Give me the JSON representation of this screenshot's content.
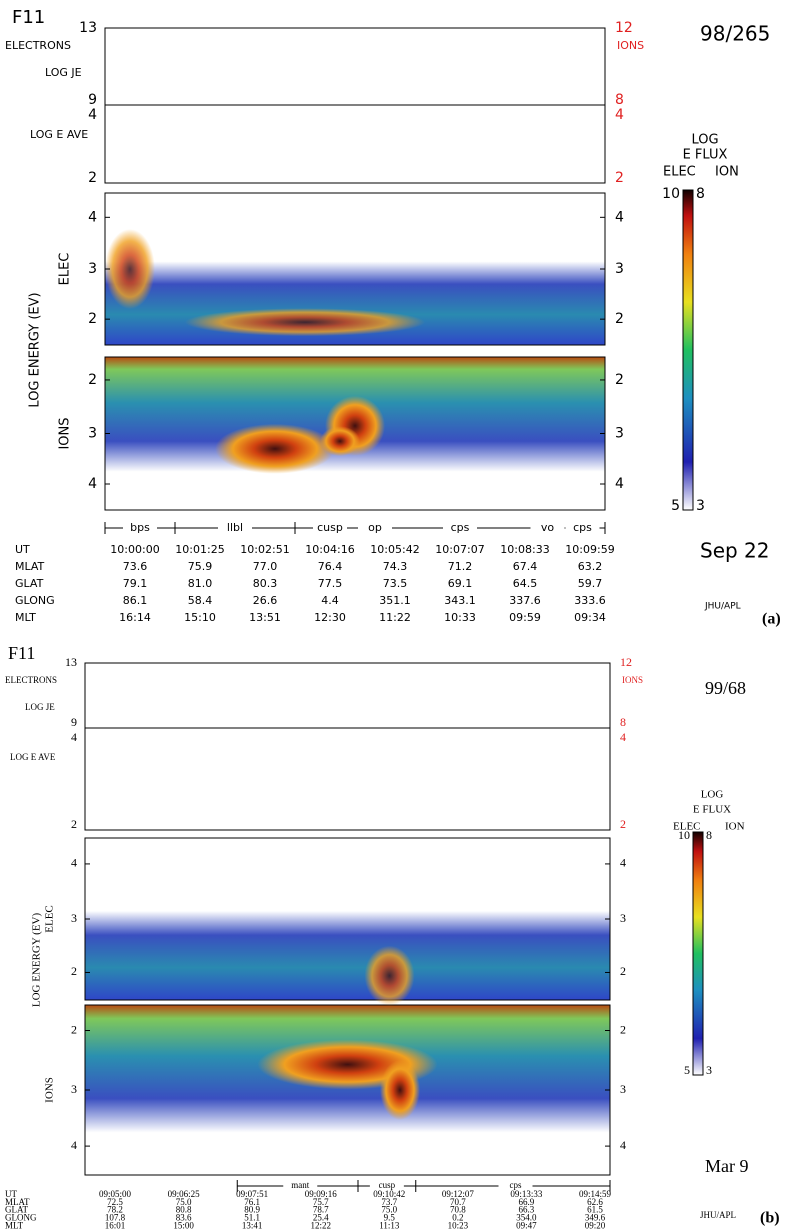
{
  "panels": [
    {
      "satellite": "F11",
      "date_code": "98/265",
      "date": "Sep 22",
      "credit": "JHU/APL",
      "label": "(a)",
      "top_plot": {
        "left_labels": [
          "ELECTRONS",
          "LOG JE"
        ],
        "left_ticks": [
          "13",
          "9"
        ],
        "right_label": "IONS",
        "right_ticks": [
          "12",
          "8"
        ]
      },
      "ave_plot": {
        "label": "LOG E AVE",
        "left_ticks": [
          "4",
          "2"
        ],
        "right_ticks": [
          "4",
          "2"
        ]
      },
      "y_axis_label": "LOG ENERGY (EV)",
      "elec_plot": {
        "label": "ELEC",
        "ticks": [
          "4",
          "3",
          "2"
        ]
      },
      "ion_plot": {
        "label": "IONS",
        "ticks": [
          "2",
          "3",
          "4"
        ]
      },
      "colorbar": {
        "title": [
          "LOG",
          "E FLUX"
        ],
        "elec_label": "ELEC",
        "ion_label": "ION",
        "max_elec": "10",
        "max_ion": "8",
        "min_elec": "5",
        "min_ion": "3"
      },
      "regions": [
        "bps",
        "llbl",
        "cusp",
        "op",
        "cps",
        "vo",
        "cps"
      ],
      "table": {
        "row_labels": [
          "UT",
          "MLAT",
          "GLAT",
          "GLONG",
          "MLT"
        ],
        "rows": [
          [
            "10:00:00",
            "10:01:25",
            "10:02:51",
            "10:04:16",
            "10:05:42",
            "10:07:07",
            "10:08:33",
            "10:09:59"
          ],
          [
            "73.6",
            "75.9",
            "77.0",
            "76.4",
            "74.3",
            "71.2",
            "67.4",
            "63.2"
          ],
          [
            "79.1",
            "81.0",
            "80.3",
            "77.5",
            "73.5",
            "69.1",
            "64.5",
            "59.7"
          ],
          [
            "86.1",
            "58.4",
            "26.6",
            "4.4",
            "351.1",
            "343.1",
            "337.6",
            "333.6"
          ],
          [
            "16:14",
            "15:10",
            "13:51",
            "12:30",
            "11:22",
            "10:33",
            "09:59",
            "09:34"
          ]
        ]
      }
    },
    {
      "satellite": "F11",
      "date_code": "99/68",
      "date": "Mar 9",
      "credit": "JHU/APL",
      "label": "(b)",
      "top_plot": {
        "left_labels": [
          "ELECTRONS",
          "LOG JE"
        ],
        "left_ticks": [
          "13",
          "9"
        ],
        "right_label": "IONS",
        "right_ticks": [
          "12",
          "8"
        ]
      },
      "ave_plot": {
        "label": "LOG E AVE",
        "left_ticks": [
          "4",
          "2"
        ],
        "right_ticks": [
          "4",
          "2"
        ]
      },
      "y_axis_label": "LOG ENERGY (EV)",
      "elec_plot": {
        "label": "ELEC",
        "ticks": [
          "4",
          "3",
          "2"
        ]
      },
      "ion_plot": {
        "label": "IONS",
        "ticks": [
          "2",
          "3",
          "4"
        ]
      },
      "colorbar": {
        "title": [
          "LOG",
          "E FLUX"
        ],
        "elec_label": "ELEC",
        "ion_label": "ION",
        "max_elec": "10",
        "max_ion": "8",
        "min_elec": "5",
        "min_ion": "3"
      },
      "regions": [
        "mant",
        "cusp",
        "cps"
      ],
      "table": {
        "row_labels": [
          "UT",
          "MLAT",
          "GLAT",
          "GLONG",
          "MLT"
        ],
        "rows": [
          [
            "09:05:00",
            "09:06:25",
            "09:07:51",
            "09:09:16",
            "09:10:42",
            "09:12:07",
            "09:13:33",
            "09:14:59"
          ],
          [
            "72.5",
            "75.0",
            "76.1",
            "75.7",
            "73.7",
            "70.7",
            "66.9",
            "62.6"
          ],
          [
            "78.2",
            "80.8",
            "80.9",
            "78.7",
            "75.0",
            "70.8",
            "66.3",
            "61.5"
          ],
          [
            "107.8",
            "83.6",
            "51.1",
            "25.4",
            "9.5",
            "0.2",
            "354.0",
            "349.6"
          ],
          [
            "16:01",
            "15:00",
            "13:41",
            "12:22",
            "11:13",
            "10:23",
            "09:47",
            "09:20"
          ]
        ]
      }
    }
  ]
}
